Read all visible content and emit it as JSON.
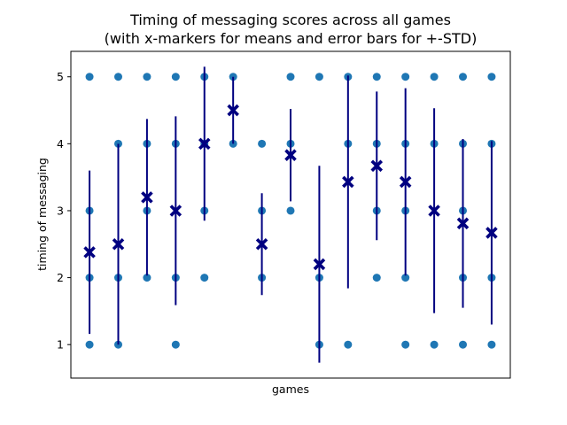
{
  "chart_data": {
    "type": "scatter",
    "title_line1": "Timing of messaging scores across all games",
    "title_line2": "(with x-markers for means and error bars for +-STD)",
    "xlabel": "games",
    "ylabel": "timing of messaging",
    "yticks": [
      "1",
      "2",
      "3",
      "4",
      "5"
    ],
    "ylim": [
      0.5,
      5.38
    ],
    "xlim": [
      -0.65,
      14.65
    ],
    "grid": false,
    "legend": "none",
    "colors": {
      "points": "#1f77b4",
      "means": "#000080",
      "errorbars": "#000080"
    },
    "games": [
      {
        "points": [
          1,
          2,
          3,
          5
        ],
        "mean": 2.38,
        "std": 1.22
      },
      {
        "points": [
          1,
          2,
          4,
          5
        ],
        "mean": 2.5,
        "std": 1.5
      },
      {
        "points": [
          2,
          3,
          4,
          5
        ],
        "mean": 3.2,
        "std": 1.17
      },
      {
        "points": [
          1,
          2,
          4,
          5
        ],
        "mean": 3.0,
        "std": 1.41
      },
      {
        "points": [
          2,
          3,
          4,
          5
        ],
        "mean": 4.0,
        "std": 1.15
      },
      {
        "points": [
          4,
          5
        ],
        "mean": 4.5,
        "std": 0.5
      },
      {
        "points": [
          2,
          3,
          4
        ],
        "mean": 2.5,
        "std": 0.76
      },
      {
        "points": [
          3,
          4,
          5
        ],
        "mean": 3.83,
        "std": 0.69
      },
      {
        "points": [
          1,
          2,
          5
        ],
        "mean": 2.2,
        "std": 1.47
      },
      {
        "points": [
          1,
          4,
          5
        ],
        "mean": 3.43,
        "std": 1.59
      },
      {
        "points": [
          2,
          3,
          4,
          5
        ],
        "mean": 3.67,
        "std": 1.11
      },
      {
        "points": [
          1,
          2,
          3,
          4,
          5
        ],
        "mean": 3.43,
        "std": 1.4
      },
      {
        "points": [
          1,
          4,
          5
        ],
        "mean": 3.0,
        "std": 1.53
      },
      {
        "points": [
          1,
          2,
          3,
          4,
          5
        ],
        "mean": 2.81,
        "std": 1.26
      },
      {
        "points": [
          1,
          2,
          4,
          5
        ],
        "mean": 2.67,
        "std": 1.37
      }
    ]
  }
}
